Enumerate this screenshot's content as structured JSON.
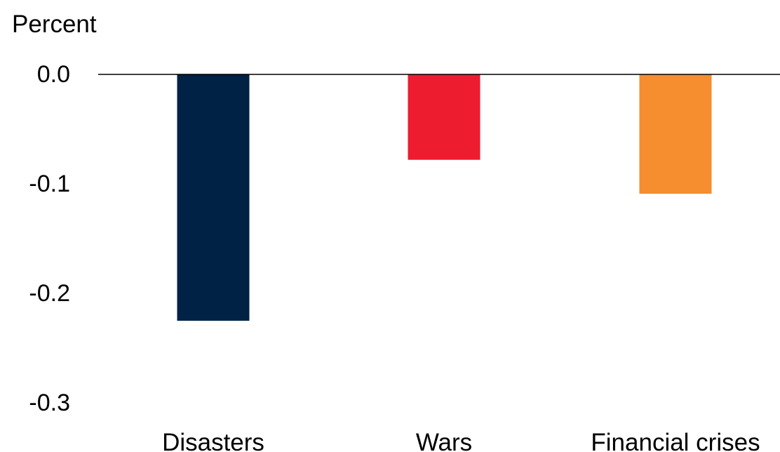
{
  "chart_data": {
    "type": "bar",
    "ylabel": "Percent",
    "xlabel": "",
    "title": "",
    "categories": [
      "Disasters",
      "Wars",
      "Financial crises"
    ],
    "values": [
      -0.225,
      -0.078,
      -0.109
    ],
    "colors": [
      "#002244",
      "#ED1C2E",
      "#F68D2E"
    ],
    "ylim": [
      -0.3,
      0.0
    ],
    "yticks": [
      "0.0",
      "-0.1",
      "-0.2",
      "-0.3"
    ],
    "ytick_values": [
      0.0,
      -0.1,
      -0.2,
      -0.3
    ],
    "grid": false,
    "zero_line_color": "#000000"
  }
}
